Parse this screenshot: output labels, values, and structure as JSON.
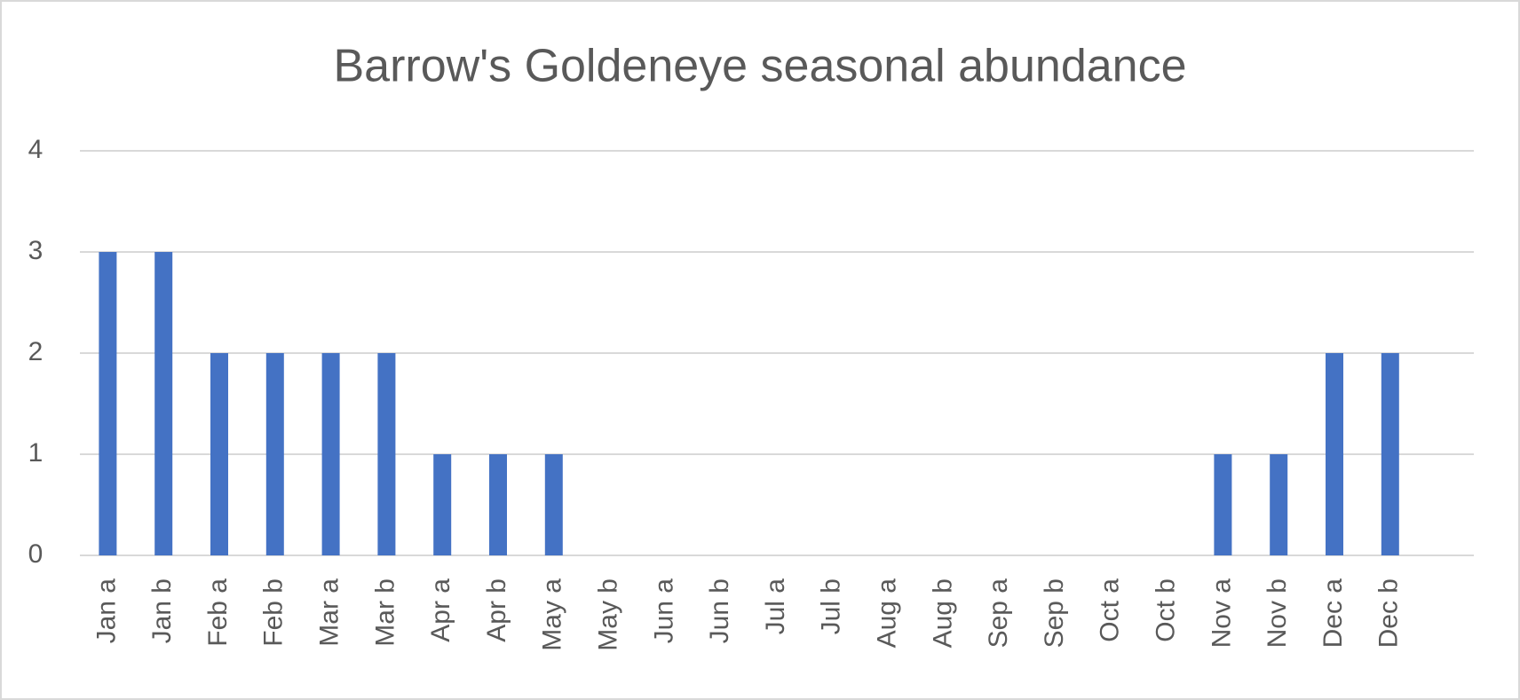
{
  "chart_data": {
    "type": "bar",
    "title": "Barrow's Goldeneye seasonal abundance",
    "categories": [
      "Jan a",
      "Jan b",
      "Feb a",
      "Feb b",
      "Mar a",
      "Mar b",
      "Apr a",
      "Apr b",
      "May a",
      "May b",
      "Jun a",
      "Jun b",
      "Jul a",
      "Jul b",
      "Aug a",
      "Aug b",
      "Sep a",
      "Sep b",
      "Oct a",
      "Oct b",
      "Nov a",
      "Nov b",
      "Dec a",
      "Dec b",
      null
    ],
    "values": [
      3,
      3,
      2,
      2,
      2,
      2,
      1,
      1,
      1,
      0,
      0,
      0,
      0,
      0,
      0,
      0,
      0,
      0,
      0,
      0,
      1,
      1,
      2,
      2,
      0
    ],
    "color": "#4472c4",
    "ylim": [
      0,
      4
    ],
    "yticks": [
      0,
      1,
      2,
      3,
      4
    ],
    "grid": true
  }
}
